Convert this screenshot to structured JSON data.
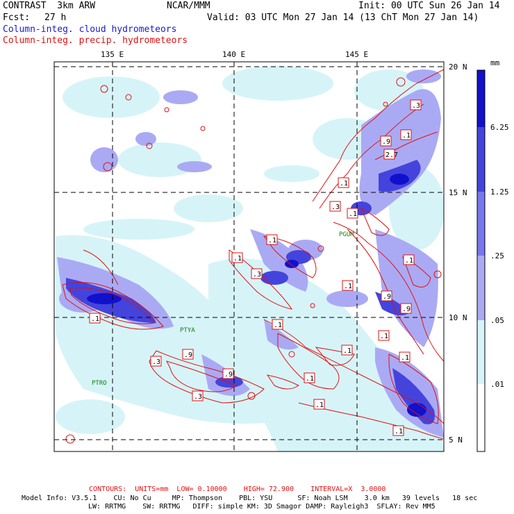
{
  "header": {
    "model": "CONTRAST  3km ARW",
    "org": "NCAR/MMM",
    "init": "Init: 00 UTC Sun 26 Jan 14",
    "fcst_label": "Fcst:",
    "fcst_value": "27 h",
    "valid": "Valid: 03 UTC Mon 27 Jan 14 (13 ChT Mon 27 Jan 14)",
    "field1": "Column-integ. cloud hydrometeors",
    "field2": "Column-integ. precip. hydrometeors"
  },
  "colors": {
    "cloud_field": "#1a1acc",
    "precip_field": "#e01010",
    "station": "#108010"
  },
  "map": {
    "lon_labels": [
      "135 E",
      "140 E",
      "145 E"
    ],
    "lat_labels": [
      "20 N",
      "15 N",
      "10 N",
      "5 N"
    ],
    "stations": [
      "PGUM",
      "PTYA",
      "PTRO"
    ],
    "contour_labels": [
      ".3",
      ".1",
      ".9",
      "2.7",
      ".1",
      ".3",
      ".1",
      ".1",
      ".3",
      ".1",
      ".1",
      ".9",
      ".9",
      ".1",
      ".1",
      ".1",
      ".9",
      ".1",
      ".3",
      ".3",
      ".1",
      ".9",
      ".1",
      ".1",
      ".1",
      ".1"
    ]
  },
  "colorbar": {
    "unit": "mm",
    "labels": [
      "6.25",
      "1.25",
      ".25",
      ".05",
      ".01"
    ],
    "colors": [
      "#1111cc",
      "#4444dd",
      "#7777ee",
      "#aaaaf4",
      "#d6f4f8",
      "#ffffff"
    ]
  },
  "footer": {
    "contours": "CONTOURS:  UNITS=mm  LOW= 0.10000    HIGH= 72.900    INTERVAL=X  3.0000",
    "line1": "Model Info: V3.5.1    CU: No Cu     MP: Thompson    PBL: YSU      SF: Noah LSM    3.0 km   39 levels   18 sec",
    "line2": "LW: RRTMG    SW: RRTMG   DIFF: simple KM: 3D Smagor DAMP: Rayleigh3  SFLAY: Rev MM5"
  }
}
